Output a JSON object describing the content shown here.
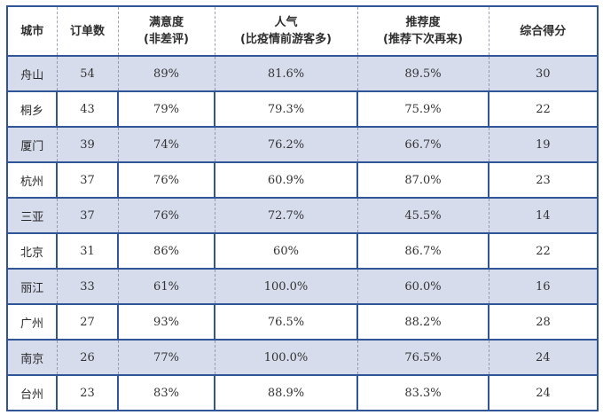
{
  "table": {
    "headers": [
      {
        "line1": "城市",
        "line2": ""
      },
      {
        "line1": "订单数",
        "line2": ""
      },
      {
        "line1": "满意度",
        "line2": "(非差评)"
      },
      {
        "line1": "人气",
        "line2": "(比疫情前游客多)"
      },
      {
        "line1": "推荐度",
        "line2": "(推荐下次再来)"
      },
      {
        "line1": "综合得分",
        "line2": ""
      }
    ],
    "rows": [
      {
        "city": "舟山",
        "orders": "54",
        "satisfaction": "89%",
        "popularity": "81.6%",
        "recommendation": "89.5%",
        "score": "30"
      },
      {
        "city": "桐乡",
        "orders": "43",
        "satisfaction": "79%",
        "popularity": "79.3%",
        "recommendation": "75.9%",
        "score": "22"
      },
      {
        "city": "厦门",
        "orders": "39",
        "satisfaction": "74%",
        "popularity": "76.2%",
        "recommendation": "66.7%",
        "score": "19"
      },
      {
        "city": "杭州",
        "orders": "37",
        "satisfaction": "76%",
        "popularity": "60.9%",
        "recommendation": "87.0%",
        "score": "23"
      },
      {
        "city": "三亚",
        "orders": "37",
        "satisfaction": "76%",
        "popularity": "72.7%",
        "recommendation": "45.5%",
        "score": "14"
      },
      {
        "city": "北京",
        "orders": "31",
        "satisfaction": "86%",
        "popularity": "60%",
        "recommendation": "86.7%",
        "score": "22"
      },
      {
        "city": "丽江",
        "orders": "33",
        "satisfaction": "61%",
        "popularity": "100.0%",
        "recommendation": "60.0%",
        "score": "16"
      },
      {
        "city": "广州",
        "orders": "27",
        "satisfaction": "93%",
        "popularity": "76.5%",
        "recommendation": "88.2%",
        "score": "28"
      },
      {
        "city": "南京",
        "orders": "26",
        "satisfaction": "77%",
        "popularity": "100.0%",
        "recommendation": "76.5%",
        "score": "24"
      },
      {
        "city": "台州",
        "orders": "23",
        "satisfaction": "83%",
        "popularity": "88.9%",
        "recommendation": "83.3%",
        "score": "24"
      }
    ]
  },
  "style": {
    "border_color": "#2f5597",
    "shade_color": "#d6dcec"
  }
}
